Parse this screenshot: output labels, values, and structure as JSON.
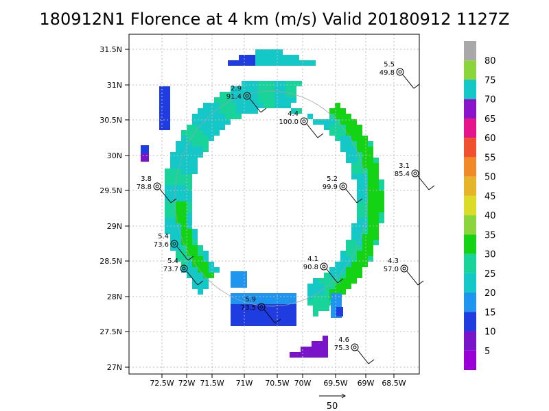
{
  "title": "180912N1 Florence at 4 km (m/s) Valid 20180912  1127Z",
  "lat_labels": [
    "31.5N",
    "31N",
    "30.5N",
    "30N",
    "29.5N",
    "29N",
    "28.5N",
    "28N",
    "27.5N",
    "27N"
  ],
  "lon_labels": [
    "72.5W",
    "72W",
    "71.5W",
    "71W",
    "70.5W",
    "70W",
    "69.5W",
    "69W",
    "68.5W"
  ],
  "colorbar": {
    "levels": [
      "5",
      "10",
      "15",
      "20",
      "25",
      "30",
      "35",
      "40",
      "45",
      "50",
      "55",
      "60",
      "65",
      "70",
      "75",
      "80"
    ],
    "colors": [
      "#9a00d6",
      "#7a14c8",
      "#1e3ce0",
      "#1e96f0",
      "#14c8c8",
      "#18d49a",
      "#14d214",
      "#8cd43c",
      "#dcdc28",
      "#e6b428",
      "#f08a28",
      "#f0502d",
      "#e62d50",
      "#e6148c",
      "#a014c8",
      "#14c8c8",
      "#8cd43c",
      "#a8a8a8"
    ]
  },
  "reference_vector": "50",
  "stations": [
    {
      "a": "5.5",
      "b": "49.8"
    },
    {
      "a": "2.9",
      "b": "91.4"
    },
    {
      "a": "4.4",
      "b": "100.0"
    },
    {
      "a": "3.1",
      "b": "85.4"
    },
    {
      "a": "3.8",
      "b": "78.8"
    },
    {
      "a": "5.2",
      "b": "99.9"
    },
    {
      "a": "5.4",
      "b": "73.6"
    },
    {
      "a": "5.4",
      "b": "73.7"
    },
    {
      "a": "4.1",
      "b": "90.8"
    },
    {
      "a": "4.3",
      "b": "57.0"
    },
    {
      "a": "5.9",
      "b": "73.5"
    },
    {
      "a": "4.6",
      "b": "75.3"
    }
  ]
}
